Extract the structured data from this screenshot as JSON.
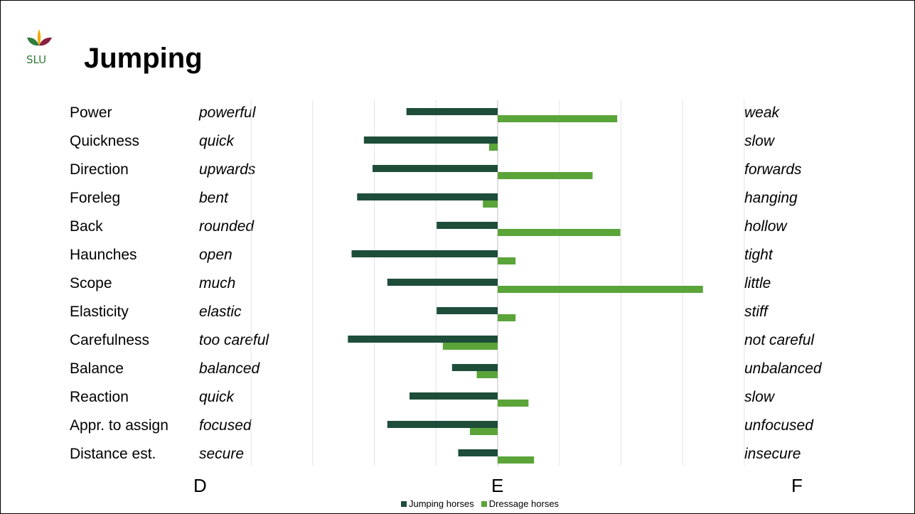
{
  "slide": {
    "title": "Jumping",
    "logo_text": "SLU"
  },
  "chart_data": {
    "type": "bar",
    "orientation": "horizontal",
    "categories": [
      "Power",
      "Quickness",
      "Direction",
      "Foreleg",
      "Back",
      "Haunches",
      "Scope",
      "Elasticity",
      "Carefulness",
      "Balance",
      "Reaction",
      "Appr. to assign",
      "Distance est."
    ],
    "left_labels": [
      "powerful",
      "quick",
      "upwards",
      "bent",
      "rounded",
      "open",
      "much",
      "elastic",
      "too careful",
      "balanced",
      "quick",
      "focused",
      "secure"
    ],
    "right_labels": [
      "weak",
      "slow",
      "forwards",
      "hanging",
      "hollow",
      "tight",
      "little",
      "stiff",
      "not careful",
      "unbalanced",
      "slow",
      "unfocused",
      "insecure"
    ],
    "series": [
      {
        "name": "Jumping horses",
        "color": "#1e4d3a",
        "values": [
          -1.48,
          -2.17,
          -2.03,
          -2.28,
          -0.99,
          -2.37,
          -1.79,
          -0.99,
          -2.43,
          -0.74,
          -1.43,
          -1.79,
          -0.64
        ]
      },
      {
        "name": "Dressage horses",
        "color": "#5aa43a",
        "values": [
          1.94,
          -0.14,
          1.54,
          -0.24,
          1.99,
          0.29,
          3.33,
          0.29,
          -0.89,
          -0.34,
          0.5,
          -0.45,
          0.59
        ]
      }
    ],
    "xlim": [
      -4,
      4
    ],
    "grid": true,
    "axis_letters": [
      "D",
      "E",
      "F"
    ],
    "legend_position": "bottom"
  }
}
